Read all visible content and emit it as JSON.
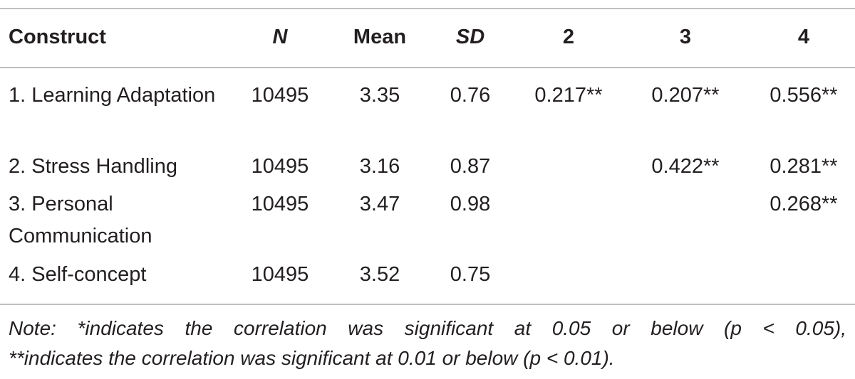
{
  "table": {
    "header": [
      "Construct",
      "N",
      "Mean",
      "SD",
      "2",
      "3",
      "4"
    ],
    "rows": [
      [
        "1. Learning Adaptation",
        "10495",
        "3.35",
        "0.76",
        "0.217**",
        "0.207**",
        "0.556**"
      ],
      [
        "2. Stress Handling",
        "10495",
        "3.16",
        "0.87",
        null,
        "0.422**",
        "0.281**"
      ],
      [
        "3. Personal Communication",
        "10495",
        "3.47",
        "0.98",
        null,
        null,
        "0.268**"
      ],
      [
        "4. Self-concept",
        "10495",
        "3.52",
        "0.75",
        null,
        null,
        null
      ]
    ],
    "note": [
      "Note: *indicates the correlation was significant at 0.05 or below (p < 0.05),",
      "**indicates the correlation was significant at 0.01 or below (p < 0.01)."
    ]
  }
}
